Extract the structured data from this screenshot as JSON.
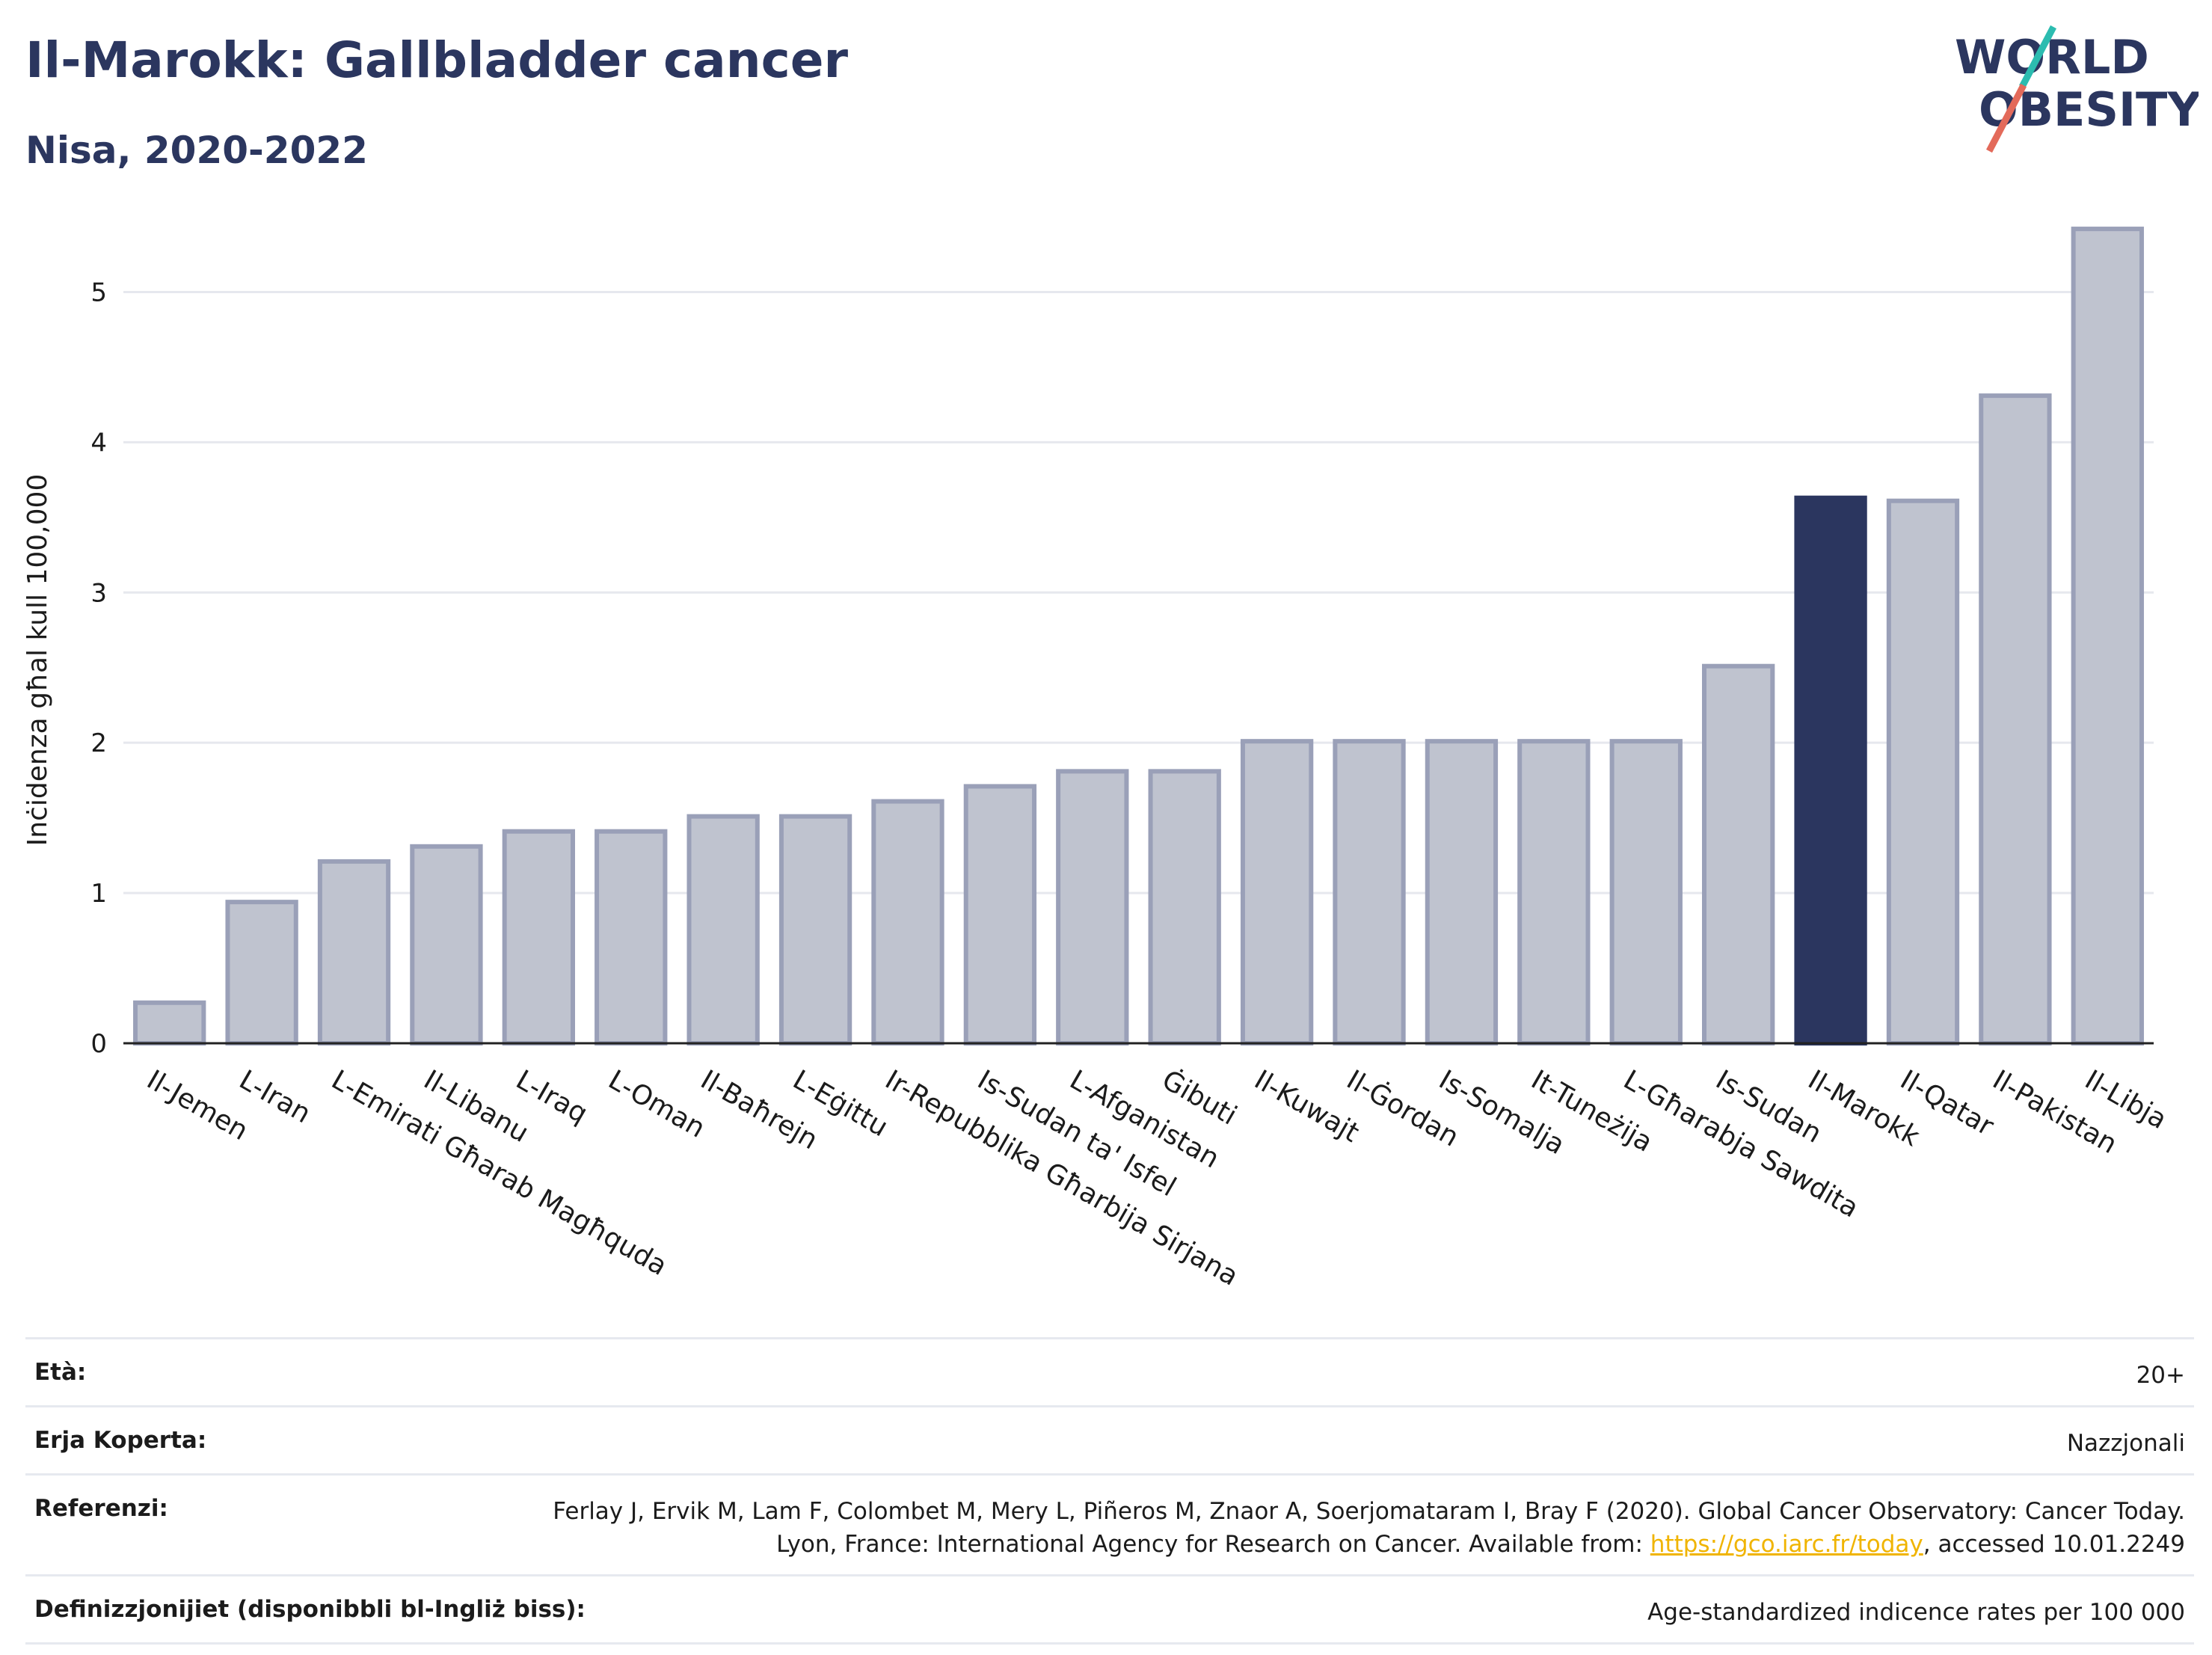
{
  "header": {
    "title": "Il-Marokk: Gallbladder cancer",
    "subtitle": "Nisa, 2020-2022",
    "logo_line1": "WORLD",
    "logo_line2": "OBESITY"
  },
  "chart_data": {
    "type": "bar",
    "title": "Il-Marokk: Gallbladder cancer",
    "subtitle": "Nisa, 2020-2022",
    "ylabel": "Inċidenza għal kull 100,000",
    "xlabel": "",
    "ylim": [
      0,
      5.5
    ],
    "yticks": [
      0,
      1,
      2,
      3,
      4,
      5
    ],
    "grid": true,
    "categories": [
      "Il-Jemen",
      "L-Iran",
      "L-Emirati Għarab Magħquda",
      "Il-Libanu",
      "L-Iraq",
      "L-Oman",
      "Il-Baħrejn",
      "L-Eġittu",
      "Ir-Repubblika Għarbija Sirjana",
      "Is-Sudan ta' Isfel",
      "L-Afganistan",
      "Ġibuti",
      "Il-Kuwajt",
      "Il-Ġordan",
      "Is-Somalja",
      "It-Tuneżija",
      "L-Għarabja Sawdita",
      "Is-Sudan",
      "Il-Marokk",
      "Il-Qatar",
      "Il-Pakistan",
      "Il-Libja"
    ],
    "values": [
      0.27,
      0.94,
      1.21,
      1.31,
      1.41,
      1.41,
      1.51,
      1.51,
      1.61,
      1.71,
      1.81,
      1.81,
      2.01,
      2.01,
      2.01,
      2.01,
      2.01,
      2.51,
      3.63,
      3.61,
      4.31,
      5.42
    ],
    "highlight": "Il-Marokk",
    "colors": {
      "bar": "#bfc3cf",
      "bar_edge": "#9aa0b8",
      "highlight": "#2b365f",
      "grid": "#e6e8ee",
      "axis": "#222222"
    }
  },
  "meta": {
    "age_label": "Età:",
    "age_value": "20+",
    "area_label": "Erja Koperta:",
    "area_value": "Nazzjonali",
    "ref_label": "Referenzi:",
    "ref_text_1": "Ferlay J, Ervik M, Lam F, Colombet M, Mery L, Piñeros M, Znaor A, Soerjomataram I, Bray F (2020). Global Cancer Observatory: Cancer Today. Lyon, France: International Agency for Research on Cancer. Available from: ",
    "ref_link": "https://gco.iarc.fr/today",
    "ref_text_2": ", accessed 10.01.2249",
    "def_label": "Definizzjonijiet (disponibbli bl-Ingliż biss):",
    "def_value": "Age-standardized indicence rates per 100 000"
  }
}
